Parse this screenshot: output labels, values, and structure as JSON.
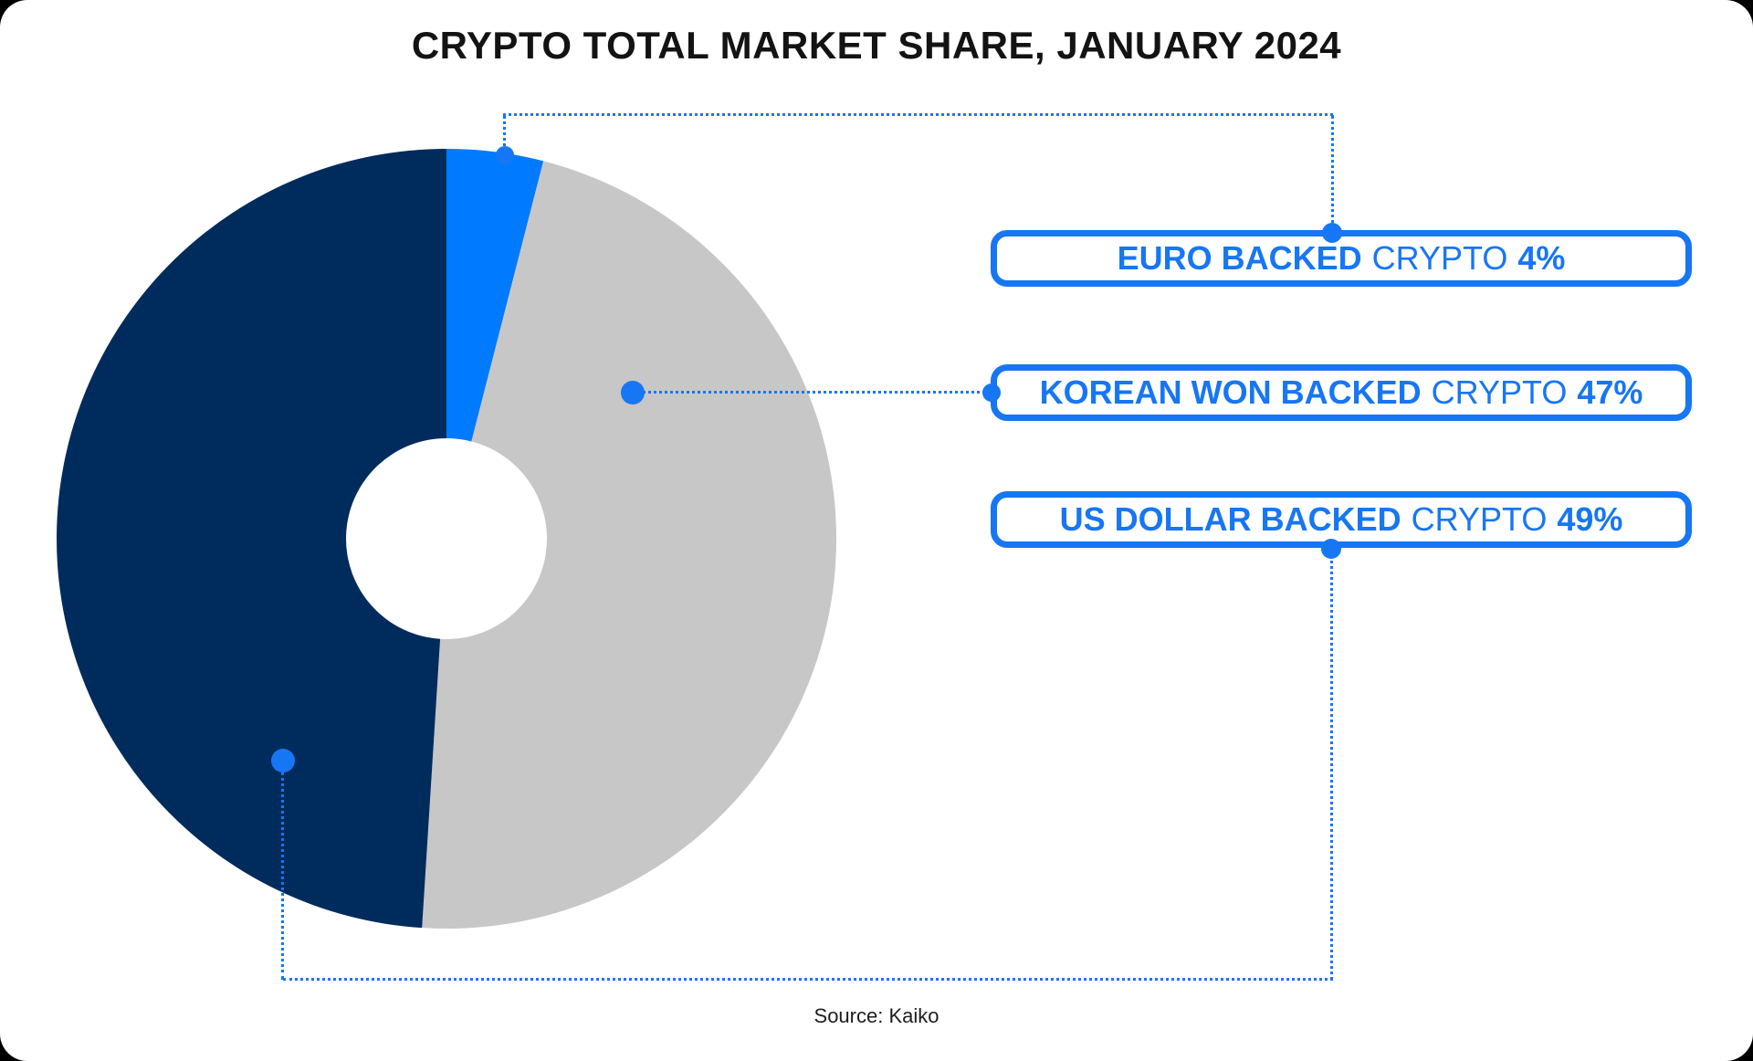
{
  "title": "CRYPTO TOTAL MARKET SHARE, JANUARY 2024",
  "source": "Source: Kaiko",
  "colors": {
    "accent_blue": "#1776f3",
    "bright_blue": "#007bff",
    "gray": "#c7c7c7",
    "navy": "#002b5d",
    "ink": "#131313",
    "card_bg": "#ffffff"
  },
  "labels": [
    {
      "bold": "EURO BACKED",
      "regular": "CRYPTO",
      "value": "4%"
    },
    {
      "bold": "KOREAN WON BACKED",
      "regular": "CRYPTO",
      "value": "47%"
    },
    {
      "bold": "US DOLLAR BACKED",
      "regular": "CRYPTO",
      "value": "49%"
    }
  ],
  "chart_data": {
    "type": "pie",
    "donut": true,
    "title": "CRYPTO TOTAL MARKET SHARE, JANUARY 2024",
    "categories": [
      "EURO BACKED CRYPTO",
      "KOREAN WON BACKED CRYPTO",
      "US DOLLAR BACKED CRYPTO"
    ],
    "values": [
      4,
      47,
      49
    ],
    "unit": "%",
    "colors": [
      "#007bff",
      "#c7c7c7",
      "#002b5d"
    ],
    "start_angle_deg": 0,
    "direction": "clockwise",
    "legend_position": "right",
    "source": "Source: Kaiko"
  }
}
